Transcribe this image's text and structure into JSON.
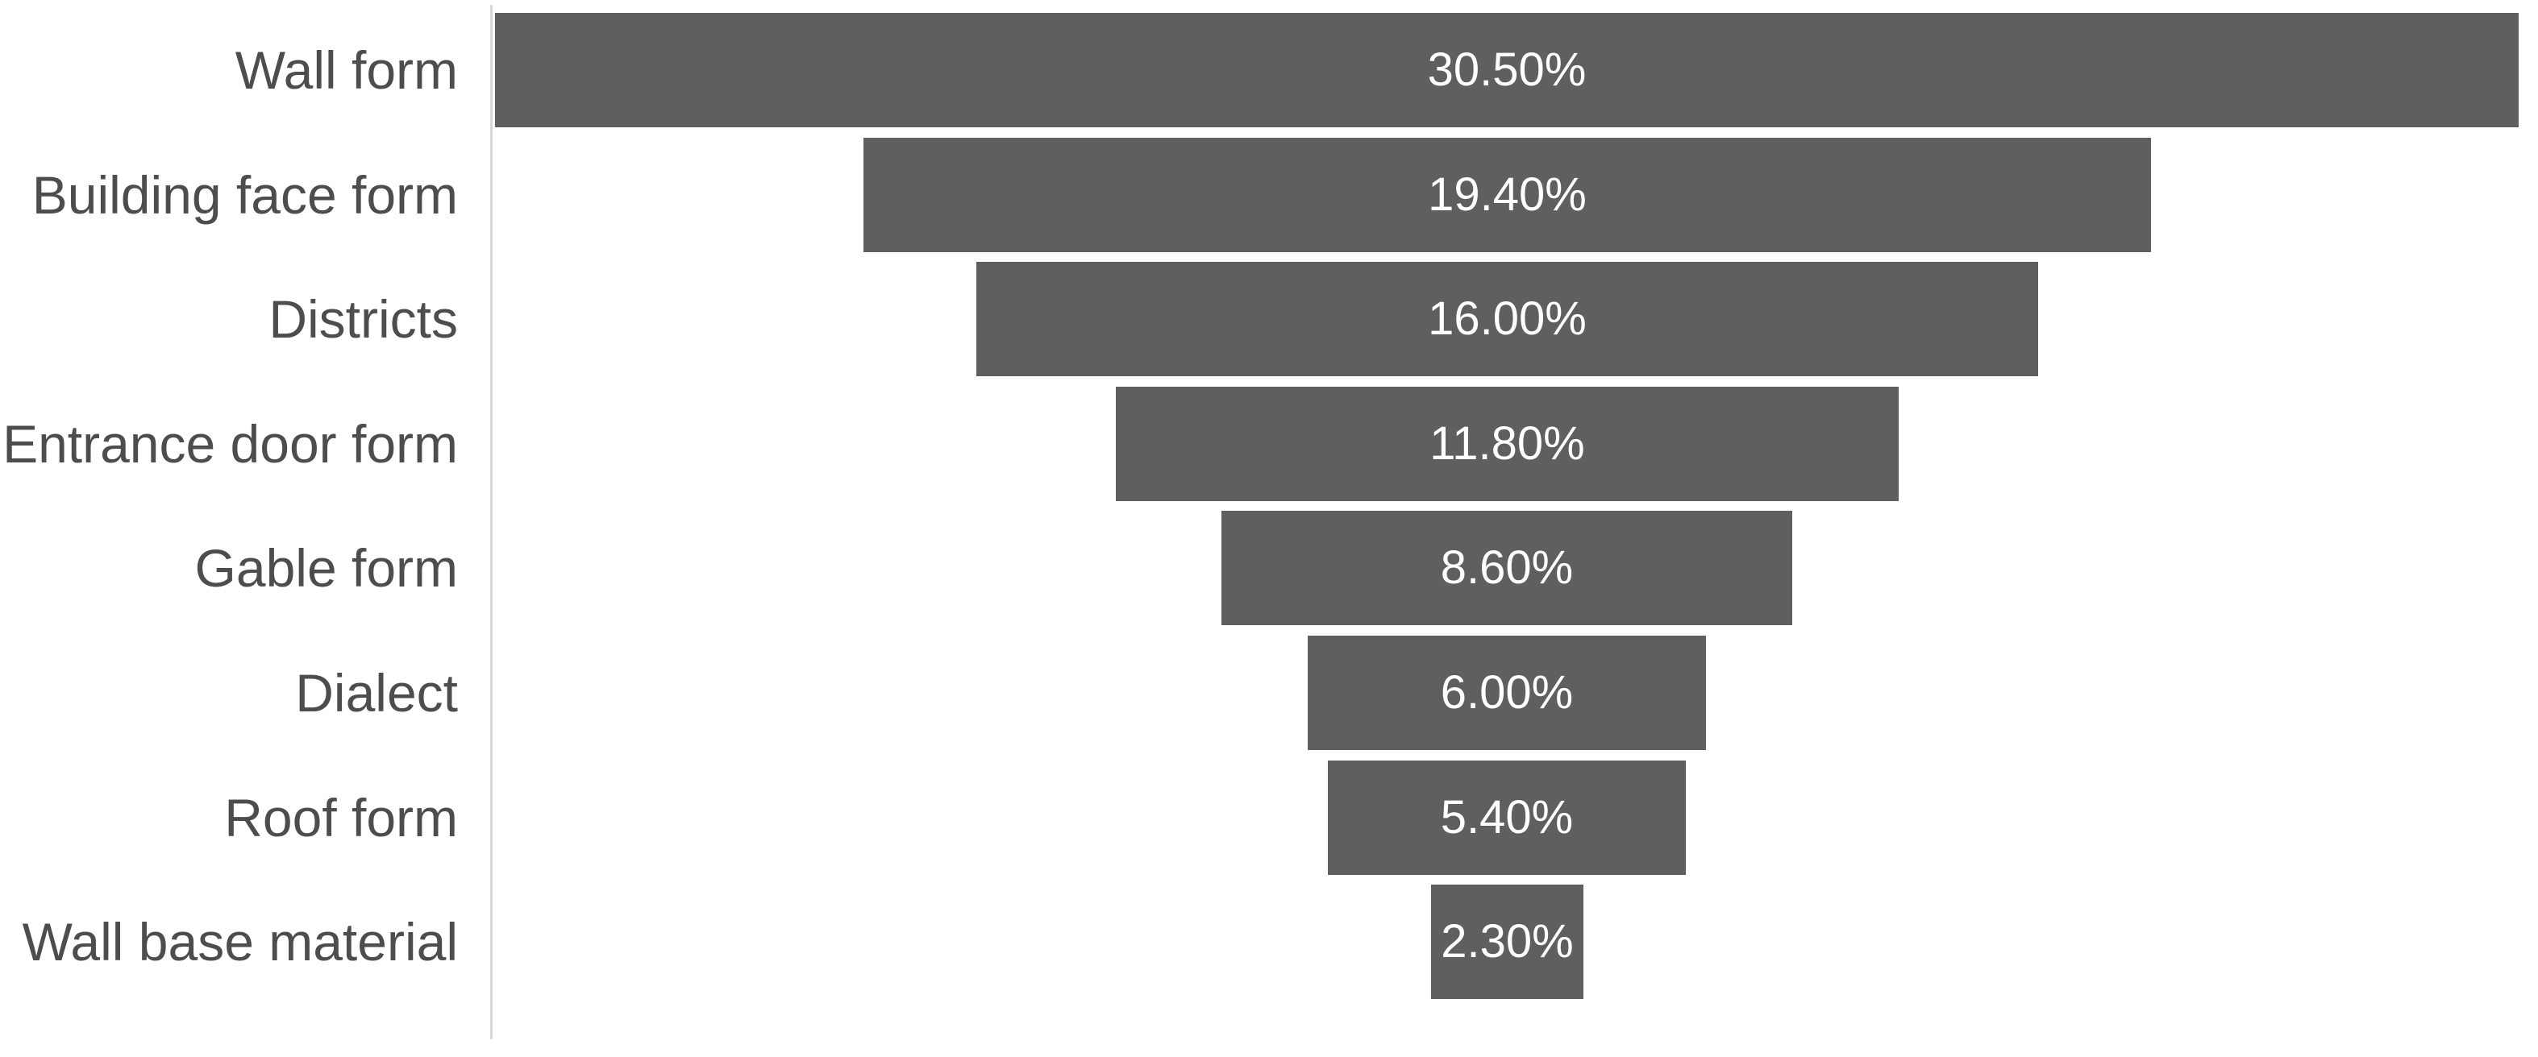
{
  "chart_data": {
    "type": "bar",
    "variant": "funnel",
    "orientation": "horizontal-centered",
    "title": "",
    "categories": [
      "Wall form",
      "Building face form",
      "Districts",
      "Entrance door form",
      "Gable form",
      "Dialect",
      "Roof form",
      "Wall base material"
    ],
    "values": [
      30.5,
      19.4,
      16.0,
      11.8,
      8.6,
      6.0,
      5.4,
      2.3
    ],
    "value_labels": [
      "30.50%",
      "19.40%",
      "16.00%",
      "11.80%",
      "8.60%",
      "6.00%",
      "5.40%",
      "2.30%"
    ],
    "value_axis": {
      "min": 0,
      "max": 30.5,
      "visible": false
    },
    "grid": false,
    "legend": false,
    "xlabel": "",
    "ylabel": "",
    "colors": {
      "bar_fill": "#5f5f5f",
      "value_text": "#ffffff",
      "category_text": "#4d4d4d",
      "axis_line": "#d9d9d9",
      "background": "#ffffff"
    }
  }
}
